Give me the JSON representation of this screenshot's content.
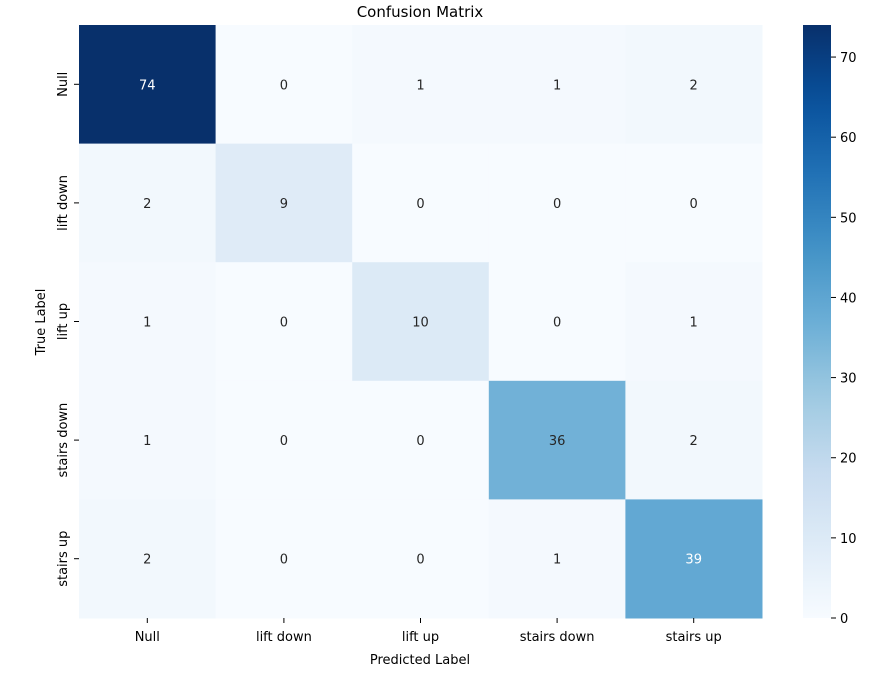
{
  "chart_data": {
    "type": "heatmap",
    "title": "Confusion Matrix",
    "xlabel": "Predicted Label",
    "ylabel": "True Label",
    "x_categories": [
      "Null",
      "lift down",
      "lift up",
      "stairs down",
      "stairs up"
    ],
    "y_categories": [
      "Null",
      "lift down",
      "lift up",
      "stairs down",
      "stairs up"
    ],
    "values": [
      [
        74,
        0,
        1,
        1,
        2
      ],
      [
        2,
        9,
        0,
        0,
        0
      ],
      [
        1,
        0,
        10,
        0,
        1
      ],
      [
        1,
        0,
        0,
        36,
        2
      ],
      [
        2,
        0,
        0,
        1,
        39
      ]
    ],
    "colormap": "Blues",
    "annotations": true,
    "colorbar": {
      "range": [
        0,
        74
      ],
      "ticks": [
        0,
        10,
        20,
        30,
        40,
        50,
        60,
        70
      ]
    }
  }
}
